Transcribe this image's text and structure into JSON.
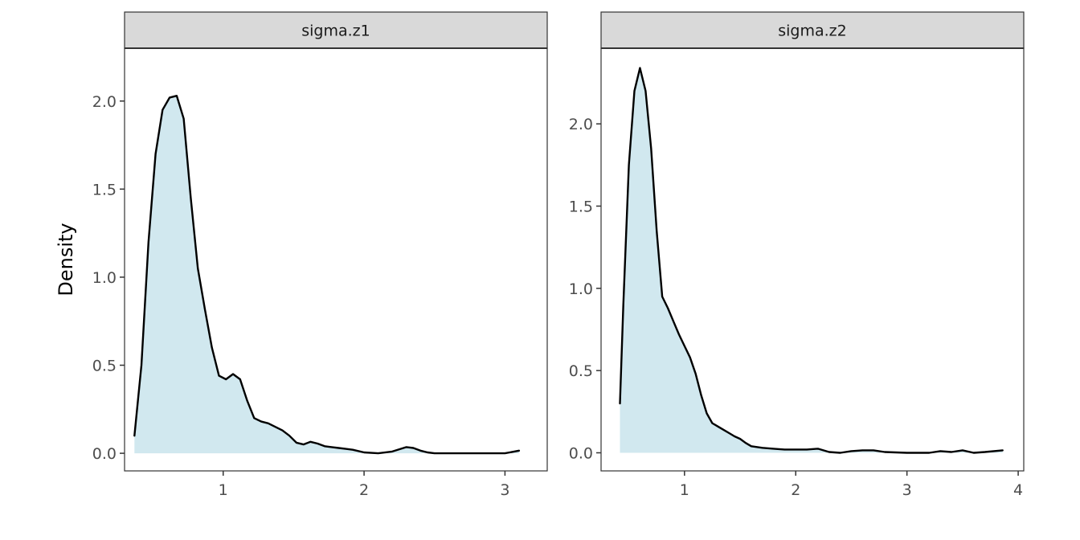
{
  "chart_data": {
    "type": "area",
    "ylabel": "Density",
    "xlabel": "",
    "grid": false,
    "colors": {
      "fill": "#d1e8ef",
      "line": "#000000",
      "strip_bg": "#d9d9d9",
      "border": "#333333"
    },
    "panels": [
      {
        "strip_label": "sigma.z1",
        "xlim": [
          0.3,
          3.3
        ],
        "ylim": [
          -0.1,
          2.3
        ],
        "x_ticks": [
          1,
          2,
          3
        ],
        "y_ticks": [
          0.0,
          0.5,
          1.0,
          1.5,
          2.0
        ],
        "y_tick_labels": [
          "0.0",
          "0.5",
          "1.0",
          "1.5",
          "2.0"
        ],
        "x": [
          0.37,
          0.42,
          0.47,
          0.52,
          0.57,
          0.62,
          0.67,
          0.72,
          0.77,
          0.82,
          0.87,
          0.92,
          0.97,
          1.02,
          1.07,
          1.12,
          1.17,
          1.22,
          1.27,
          1.32,
          1.37,
          1.42,
          1.47,
          1.52,
          1.57,
          1.62,
          1.67,
          1.72,
          1.77,
          1.82,
          1.87,
          1.92,
          2.0,
          2.1,
          2.2,
          2.3,
          2.35,
          2.4,
          2.45,
          2.5,
          2.6,
          2.8,
          3.0,
          3.1
        ],
        "y": [
          0.1,
          0.5,
          1.2,
          1.7,
          1.95,
          2.02,
          2.03,
          1.9,
          1.45,
          1.05,
          0.82,
          0.6,
          0.44,
          0.42,
          0.45,
          0.42,
          0.3,
          0.2,
          0.18,
          0.17,
          0.15,
          0.13,
          0.1,
          0.06,
          0.05,
          0.065,
          0.055,
          0.04,
          0.035,
          0.03,
          0.025,
          0.02,
          0.005,
          0.0,
          0.01,
          0.035,
          0.03,
          0.015,
          0.005,
          0.0,
          0.0,
          0.0,
          0.0,
          0.015
        ]
      },
      {
        "strip_label": "sigma.z2",
        "xlim": [
          0.25,
          4.05
        ],
        "ylim": [
          -0.11,
          2.46
        ],
        "x_ticks": [
          1,
          2,
          3,
          4
        ],
        "y_ticks": [
          0.0,
          0.5,
          1.0,
          1.5,
          2.0
        ],
        "y_tick_labels": [
          "0.0",
          "0.5",
          "1.0",
          "1.5",
          "2.0"
        ],
        "x": [
          0.42,
          0.45,
          0.5,
          0.55,
          0.6,
          0.65,
          0.7,
          0.75,
          0.8,
          0.85,
          0.9,
          0.95,
          1.0,
          1.05,
          1.1,
          1.15,
          1.2,
          1.25,
          1.3,
          1.35,
          1.4,
          1.45,
          1.5,
          1.55,
          1.6,
          1.7,
          1.8,
          1.9,
          2.0,
          2.1,
          2.2,
          2.3,
          2.4,
          2.5,
          2.6,
          2.7,
          2.8,
          3.0,
          3.2,
          3.3,
          3.4,
          3.5,
          3.6,
          3.7,
          3.86
        ],
        "y": [
          0.3,
          0.9,
          1.75,
          2.2,
          2.34,
          2.2,
          1.85,
          1.35,
          0.95,
          0.88,
          0.8,
          0.72,
          0.65,
          0.58,
          0.48,
          0.35,
          0.24,
          0.18,
          0.16,
          0.14,
          0.12,
          0.1,
          0.085,
          0.06,
          0.04,
          0.03,
          0.025,
          0.02,
          0.02,
          0.02,
          0.025,
          0.005,
          0.0,
          0.01,
          0.015,
          0.015,
          0.005,
          0.0,
          0.0,
          0.01,
          0.005,
          0.015,
          0.0,
          0.005,
          0.015
        ]
      }
    ]
  }
}
